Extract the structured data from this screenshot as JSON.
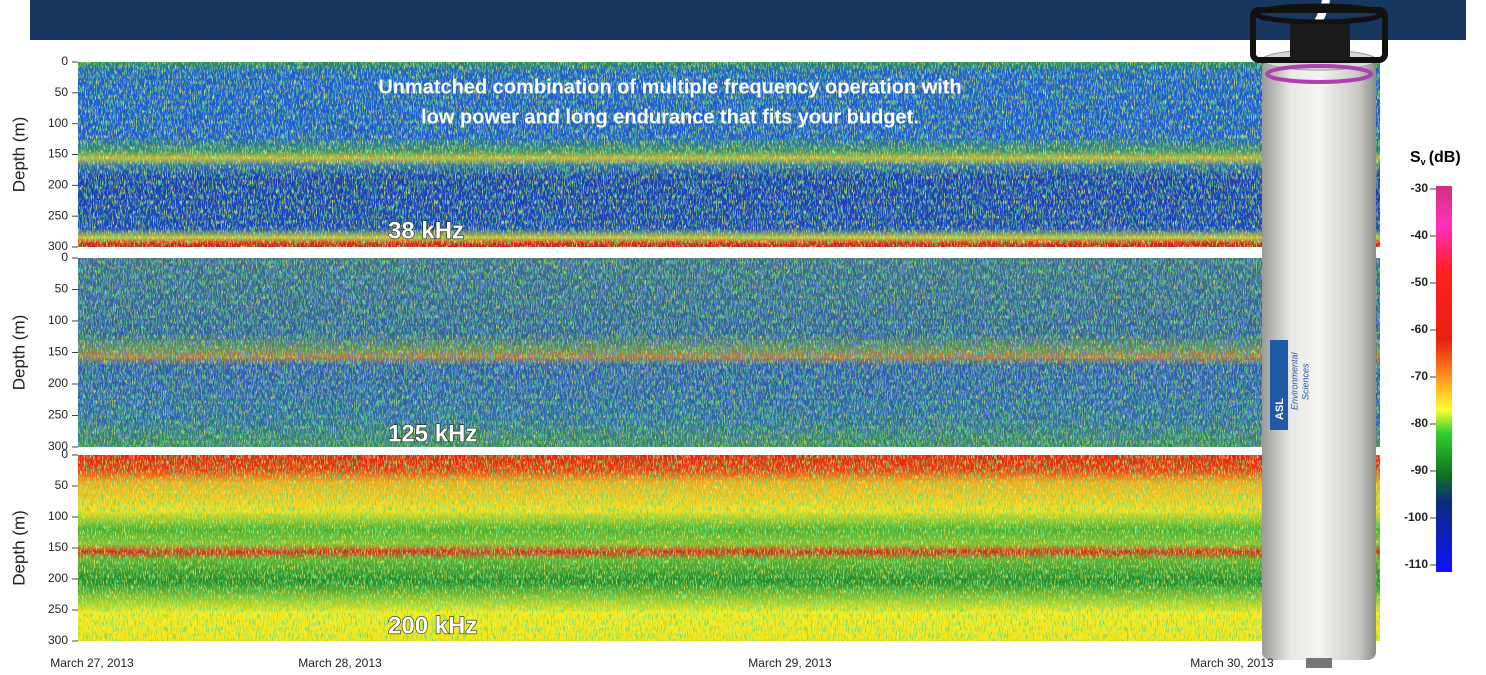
{
  "tagline": [
    "Unmatched combination of multiple frequency operation with",
    "low power and long endurance that fits your budget."
  ],
  "panels": [
    {
      "label": "38 kHz",
      "y_label": "Depth (m)",
      "ticks": [
        0,
        50,
        100,
        150,
        200,
        250,
        300
      ]
    },
    {
      "label": "125 kHz",
      "y_label": "Depth (m)",
      "ticks": [
        0,
        50,
        100,
        150,
        200,
        250,
        300
      ]
    },
    {
      "label": "200 kHz",
      "y_label": "Depth (m)",
      "ticks": [
        0,
        50,
        100,
        150,
        200,
        250,
        300
      ]
    }
  ],
  "dates": [
    "March 27, 2013",
    "March 28, 2013",
    "March 29, 2013",
    "March 30, 2013"
  ],
  "colorbar": {
    "title": {
      "main": "S",
      "sub": "v",
      "unit": "(dB)"
    },
    "ticks": [
      -30,
      -40,
      -50,
      -60,
      -70,
      -80,
      -90,
      -100,
      -110
    ]
  },
  "instrument": {
    "brand": "ASL",
    "name_line1": "Environmental",
    "name_line2": "Sciences"
  }
}
